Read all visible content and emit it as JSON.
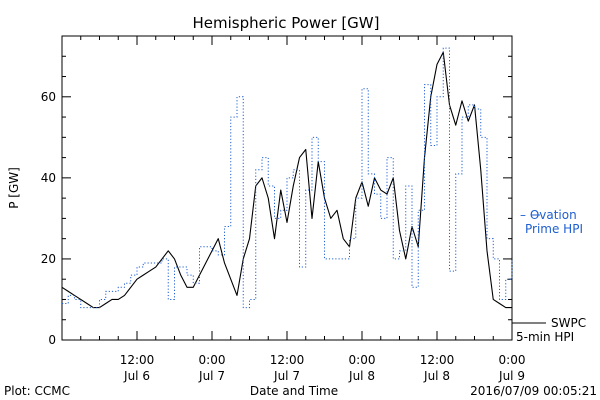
{
  "chart_data": {
    "type": "line",
    "title": "Hemispheric Power [GW]",
    "xlabel": "Date and Time",
    "ylabel": "P [GW]",
    "ylim": [
      0,
      75
    ],
    "xlim_hours": [
      0,
      72
    ],
    "y_ticks": [
      0,
      20,
      40,
      60
    ],
    "x_ticks": [
      {
        "hour": 12,
        "time": "12:00",
        "date": "Jul 6"
      },
      {
        "hour": 24,
        "time": "0:00",
        "date": "Jul 7"
      },
      {
        "hour": 36,
        "time": "12:00",
        "date": "Jul 7"
      },
      {
        "hour": 48,
        "time": "0:00",
        "date": "Jul 8"
      },
      {
        "hour": 60,
        "time": "12:00",
        "date": "Jul 8"
      },
      {
        "hour": 72,
        "time": "0:00",
        "date": "Jul 9"
      }
    ],
    "grid": false,
    "legend_position": "right",
    "series": [
      {
        "name": "SWPC 5-min HPI",
        "color": "#000000",
        "style": "solid",
        "legend_lines": [
          "SWPC",
          "5-min HPI"
        ],
        "points": [
          [
            0,
            13
          ],
          [
            1,
            12
          ],
          [
            2,
            11
          ],
          [
            3,
            10
          ],
          [
            4,
            9
          ],
          [
            5,
            8
          ],
          [
            6,
            8
          ],
          [
            7,
            9
          ],
          [
            8,
            10
          ],
          [
            9,
            10
          ],
          [
            10,
            11
          ],
          [
            11,
            13
          ],
          [
            12,
            15
          ],
          [
            13,
            16
          ],
          [
            14,
            17
          ],
          [
            15,
            18
          ],
          [
            16,
            20
          ],
          [
            17,
            22
          ],
          [
            18,
            20
          ],
          [
            19,
            16
          ],
          [
            20,
            13
          ],
          [
            21,
            13
          ],
          [
            22,
            16
          ],
          [
            23,
            19
          ],
          [
            24,
            22
          ],
          [
            25,
            25
          ],
          [
            26,
            19
          ],
          [
            27,
            15
          ],
          [
            28,
            11
          ],
          [
            29,
            20
          ],
          [
            30,
            25
          ],
          [
            31,
            38
          ],
          [
            32,
            40
          ],
          [
            33,
            35
          ],
          [
            34,
            25
          ],
          [
            35,
            37
          ],
          [
            36,
            29
          ],
          [
            37,
            38
          ],
          [
            38,
            45
          ],
          [
            39,
            47
          ],
          [
            40,
            30
          ],
          [
            41,
            44
          ],
          [
            42,
            35
          ],
          [
            43,
            30
          ],
          [
            44,
            32
          ],
          [
            45,
            25
          ],
          [
            46,
            23
          ],
          [
            47,
            35
          ],
          [
            48,
            39
          ],
          [
            49,
            33
          ],
          [
            50,
            40
          ],
          [
            51,
            37
          ],
          [
            52,
            36
          ],
          [
            53,
            40
          ],
          [
            54,
            27
          ],
          [
            55,
            20
          ],
          [
            56,
            28
          ],
          [
            57,
            23
          ],
          [
            58,
            45
          ],
          [
            59,
            60
          ],
          [
            60,
            68
          ],
          [
            61,
            71
          ],
          [
            62,
            58
          ],
          [
            63,
            53
          ],
          [
            64,
            59
          ],
          [
            65,
            54
          ],
          [
            66,
            58
          ],
          [
            67,
            42
          ],
          [
            68,
            22
          ],
          [
            69,
            10
          ],
          [
            70,
            9
          ],
          [
            71,
            8
          ],
          [
            72,
            8
          ]
        ]
      },
      {
        "name": "Ovation Prime HPI",
        "color": "#1e5fd1",
        "style": "dotted-steps",
        "legend_lines": [
          "– Ovation",
          "Prime HPI"
        ],
        "points": [
          [
            0,
            9
          ],
          [
            1,
            11
          ],
          [
            2,
            10
          ],
          [
            3,
            8
          ],
          [
            4,
            8
          ],
          [
            5,
            8
          ],
          [
            6,
            10
          ],
          [
            7,
            12
          ],
          [
            8,
            12
          ],
          [
            9,
            13
          ],
          [
            10,
            14
          ],
          [
            11,
            16
          ],
          [
            12,
            18
          ],
          [
            13,
            19
          ],
          [
            14,
            19
          ],
          [
            15,
            19
          ],
          [
            16,
            20
          ],
          [
            17,
            10
          ],
          [
            18,
            18
          ],
          [
            19,
            18
          ],
          [
            20,
            16
          ],
          [
            21,
            14
          ],
          [
            22,
            23
          ],
          [
            23,
            23
          ],
          [
            24,
            22
          ],
          [
            25,
            21
          ],
          [
            26,
            28
          ],
          [
            27,
            55
          ],
          [
            28,
            60
          ],
          [
            29,
            8
          ],
          [
            30,
            10
          ],
          [
            31,
            42
          ],
          [
            32,
            45
          ],
          [
            33,
            38
          ],
          [
            34,
            30
          ],
          [
            35,
            32
          ],
          [
            36,
            40
          ],
          [
            37,
            42
          ],
          [
            38,
            18
          ],
          [
            39,
            37
          ],
          [
            40,
            50
          ],
          [
            41,
            44
          ],
          [
            42,
            20
          ],
          [
            43,
            20
          ],
          [
            44,
            20
          ],
          [
            45,
            20
          ],
          [
            46,
            25
          ],
          [
            47,
            35
          ],
          [
            48,
            62
          ],
          [
            49,
            41
          ],
          [
            50,
            36
          ],
          [
            51,
            30
          ],
          [
            52,
            45
          ],
          [
            53,
            20
          ],
          [
            54,
            22
          ],
          [
            55,
            38
          ],
          [
            56,
            13
          ],
          [
            57,
            32
          ],
          [
            58,
            63
          ],
          [
            59,
            48
          ],
          [
            60,
            60
          ],
          [
            61,
            72
          ],
          [
            62,
            17
          ],
          [
            63,
            41
          ],
          [
            64,
            55
          ],
          [
            65,
            58
          ],
          [
            66,
            57
          ],
          [
            67,
            50
          ],
          [
            68,
            25
          ],
          [
            69,
            20
          ],
          [
            70,
            10
          ],
          [
            71,
            15
          ],
          [
            72,
            20
          ]
        ]
      }
    ]
  },
  "footer": {
    "plot_credit": "Plot: CCMC",
    "xlabel": "Date and Time",
    "timestamp": "2016/07/09 00:05:21"
  }
}
